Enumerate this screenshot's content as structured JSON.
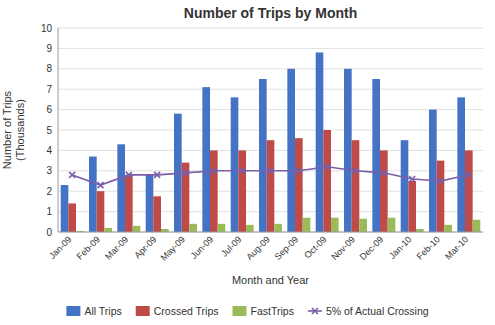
{
  "chart_data": {
    "type": "bar",
    "title": "Number of Trips by Month",
    "xlabel": "Month and Year",
    "ylabel": "Number of Trips\n(Thousands)",
    "categories": [
      "Jan-09",
      "Feb-09",
      "Mar-09",
      "Apr-09",
      "May-09",
      "Jun-09",
      "Jul-09",
      "Aug-09",
      "Sep-09",
      "Oct-09",
      "Nov-09",
      "Dec-09",
      "Jan-10",
      "Feb-10",
      "Mar-10"
    ],
    "series": [
      {
        "name": "All Trips",
        "color": "#4472C4",
        "values": [
          2.3,
          3.7,
          4.3,
          2.8,
          5.8,
          7.1,
          6.6,
          7.5,
          8.0,
          8.8,
          8.0,
          7.5,
          4.5,
          6.0,
          6.6
        ]
      },
      {
        "name": "Crossed Trips",
        "color": "#BE4B48",
        "values": [
          1.4,
          2.0,
          2.8,
          1.75,
          3.4,
          4.0,
          4.0,
          4.5,
          4.6,
          5.0,
          4.5,
          4.0,
          2.5,
          3.5,
          4.0
        ]
      },
      {
        "name": "FastTrips",
        "color": "#9BBB59",
        "values": [
          0.05,
          0.2,
          0.3,
          0.15,
          0.4,
          0.4,
          0.35,
          0.4,
          0.7,
          0.7,
          0.65,
          0.7,
          0.15,
          0.35,
          0.6
        ]
      },
      {
        "name": "5% of Actual Crossing",
        "color": "#7A5EA7",
        "type": "line",
        "marker": "x",
        "values": [
          2.8,
          2.3,
          2.8,
          2.8,
          2.9,
          3.0,
          3.0,
          3.0,
          3.0,
          3.2,
          3.0,
          2.9,
          2.6,
          2.5,
          2.8
        ]
      }
    ],
    "ylim": [
      0,
      10
    ],
    "yticks": [
      0,
      1,
      2,
      3,
      4,
      5,
      6,
      7,
      8,
      9,
      10
    ],
    "grid": true,
    "legend": "bottom"
  }
}
